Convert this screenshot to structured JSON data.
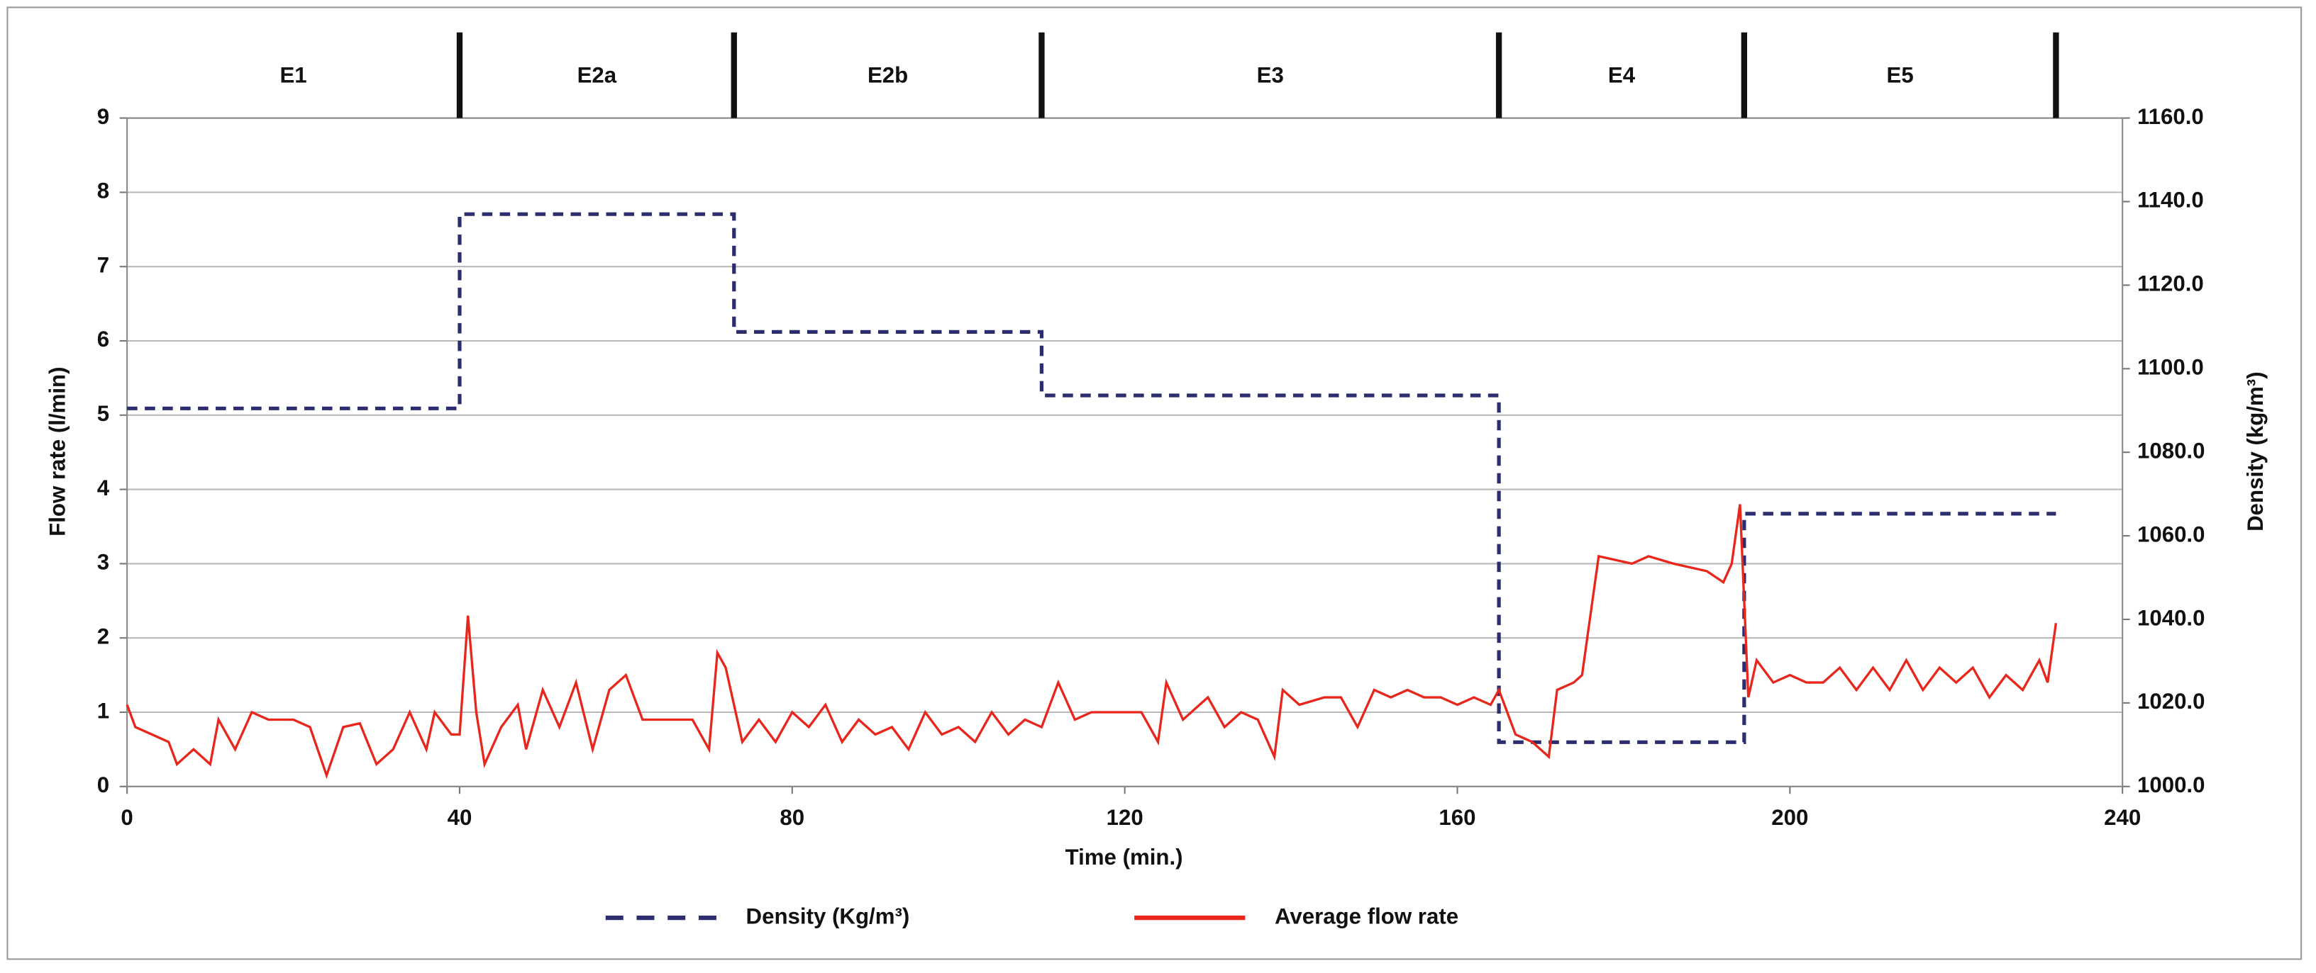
{
  "chart_data": {
    "type": "line",
    "xlabel": "Time (min.)",
    "ylabel": "Flow rate (l/min)",
    "y2label": "Density (kg/m³)",
    "xlim": [
      0,
      240
    ],
    "xticks": [
      0,
      40,
      80,
      120,
      160,
      200,
      240
    ],
    "ylim": [
      0,
      9
    ],
    "yticks": [
      0,
      1,
      2,
      3,
      4,
      5,
      6,
      7,
      8,
      9
    ],
    "y2lim": [
      1000,
      1160
    ],
    "y2ticks": [
      {
        "value": 1000,
        "label": "1000.0"
      },
      {
        "value": 1020,
        "label": "1020.0"
      },
      {
        "value": 1040,
        "label": "1040.0"
      },
      {
        "value": 1060,
        "label": "1060.0"
      },
      {
        "value": 1080,
        "label": "1080.0"
      },
      {
        "value": 1100,
        "label": "1100.0"
      },
      {
        "value": 1120,
        "label": "1120.0"
      },
      {
        "value": 1140,
        "label": "1140.0"
      },
      {
        "value": 1160,
        "label": "1160.0"
      }
    ],
    "grid": true,
    "legend": "bottom",
    "phases": [
      {
        "label": "E1",
        "end": 40
      },
      {
        "label": "E2a",
        "end": 73
      },
      {
        "label": "E2b",
        "end": 110
      },
      {
        "label": "E3",
        "end": 165
      },
      {
        "label": "E4",
        "end": 194.5
      },
      {
        "label": "E5",
        "end": 232
      }
    ],
    "series": [
      {
        "name": "Density (Kg/m³)",
        "color": "#2b2d6e",
        "dash": true,
        "axis": "y2",
        "x": [
          0,
          40,
          40,
          73,
          73,
          110,
          110,
          165,
          165,
          194.5,
          194.5,
          232
        ],
        "values": [
          1090.5,
          1090.5,
          1137,
          1137,
          1108.8,
          1108.8,
          1093.6,
          1093.6,
          1010.6,
          1010.6,
          1065.3,
          1065.3
        ]
      },
      {
        "name": "Average flow rate",
        "color": "#e8261c",
        "dash": false,
        "x": [
          0,
          1,
          3,
          5,
          6,
          8,
          10,
          11,
          13,
          15,
          17,
          20,
          22,
          24,
          26,
          28,
          30,
          32,
          34,
          36,
          37,
          39,
          40,
          41,
          42,
          43,
          45,
          47,
          48,
          50,
          52,
          54,
          56,
          58,
          60,
          62,
          64,
          66,
          68,
          70,
          71,
          72,
          74,
          76,
          78,
          80,
          82,
          84,
          86,
          88,
          90,
          92,
          94,
          96,
          98,
          100,
          102,
          104,
          106,
          108,
          110,
          112,
          114,
          116,
          118,
          120,
          122,
          124,
          125,
          127,
          130,
          132,
          134,
          136,
          138,
          139,
          141,
          144,
          146,
          148,
          150,
          152,
          154,
          156,
          158,
          160,
          162,
          164,
          165,
          166,
          167,
          169,
          171,
          172,
          174,
          175,
          177,
          179,
          181,
          183,
          186,
          190,
          192,
          193,
          194,
          195,
          196,
          198,
          200,
          202,
          204,
          206,
          208,
          210,
          212,
          214,
          216,
          218,
          220,
          222,
          224,
          226,
          228,
          230,
          231,
          232
        ],
        "values": [
          1.1,
          0.8,
          0.7,
          0.6,
          0.3,
          0.5,
          0.3,
          0.9,
          0.5,
          1.0,
          0.9,
          0.9,
          0.8,
          0.15,
          0.8,
          0.85,
          0.3,
          0.5,
          1.0,
          0.5,
          1.0,
          0.7,
          0.7,
          2.3,
          1.0,
          0.3,
          0.8,
          1.1,
          0.5,
          1.3,
          0.8,
          1.4,
          0.5,
          1.3,
          1.5,
          0.9,
          0.9,
          0.9,
          0.9,
          0.5,
          1.8,
          1.6,
          0.6,
          0.9,
          0.6,
          1.0,
          0.8,
          1.1,
          0.6,
          0.9,
          0.7,
          0.8,
          0.5,
          1.0,
          0.7,
          0.8,
          0.6,
          1.0,
          0.7,
          0.9,
          0.8,
          1.4,
          0.9,
          1.0,
          1.0,
          1.0,
          1.0,
          0.6,
          1.4,
          0.9,
          1.2,
          0.8,
          1.0,
          0.9,
          0.4,
          1.3,
          1.1,
          1.2,
          1.2,
          0.8,
          1.3,
          1.2,
          1.3,
          1.2,
          1.2,
          1.1,
          1.2,
          1.1,
          1.3,
          1.0,
          0.7,
          0.6,
          0.4,
          1.3,
          1.4,
          1.5,
          3.1,
          3.05,
          3.0,
          3.1,
          3.0,
          2.9,
          2.75,
          3.0,
          3.8,
          1.2,
          1.7,
          1.4,
          1.5,
          1.4,
          1.4,
          1.6,
          1.3,
          1.6,
          1.3,
          1.7,
          1.3,
          1.6,
          1.4,
          1.6,
          1.2,
          1.5,
          1.3,
          1.7,
          1.4,
          2.2
        ]
      }
    ]
  }
}
